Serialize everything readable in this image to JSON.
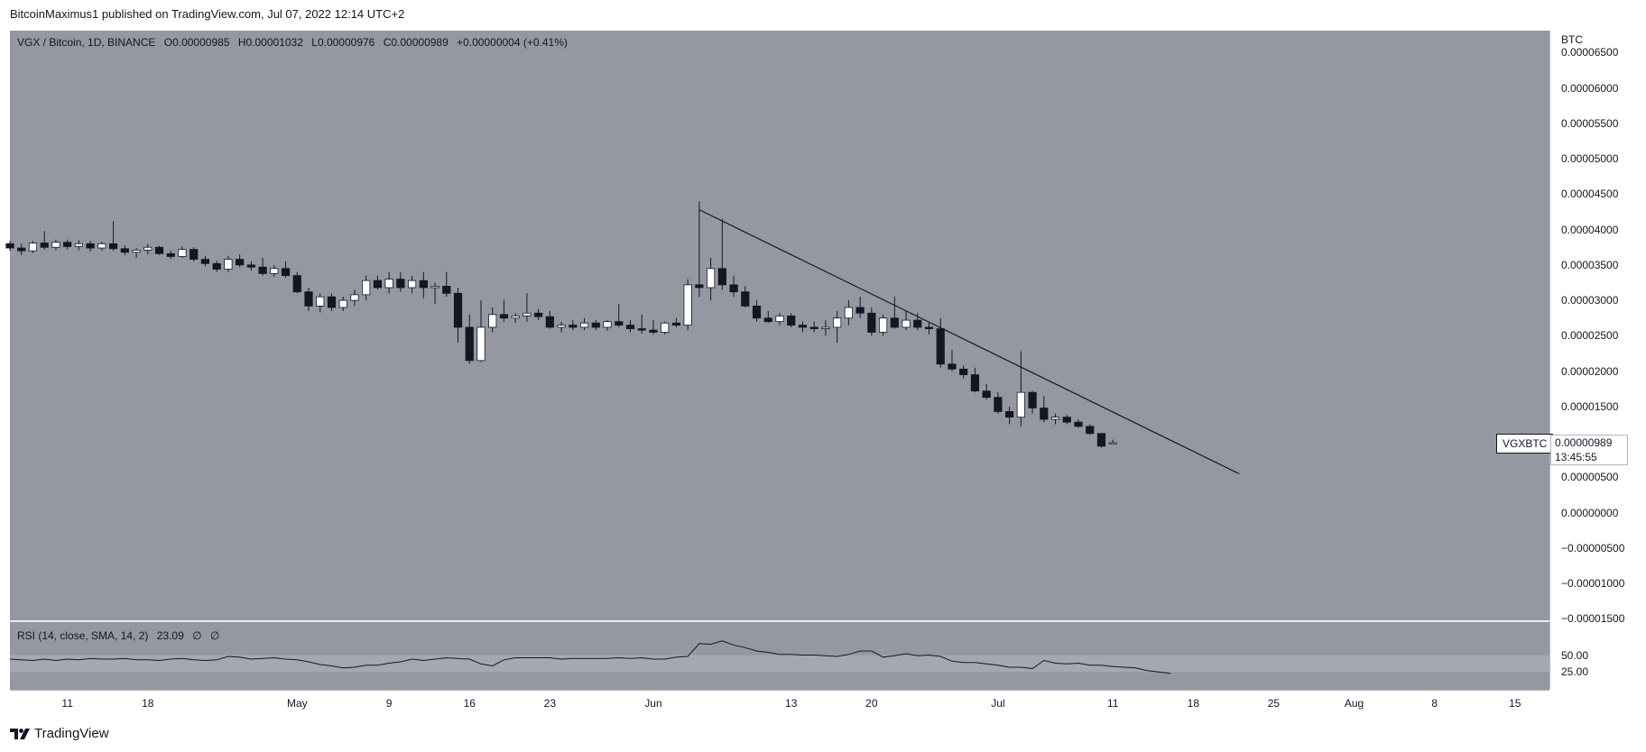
{
  "header": {
    "published_line": "BitcoinMaximus1 published on TradingView.com, Jul 07, 2022 12:14 UTC+2"
  },
  "legend": {
    "symbol": "VGX / Bitcoin, 1D, BINANCE",
    "o_label": "O",
    "o_value": "0.00000985",
    "h_label": "H",
    "h_value": "0.00001032",
    "l_label": "L",
    "l_value": "0.00000976",
    "c_label": "C",
    "c_value": "0.00000989",
    "change": "+0.00000004 (+0.41%)"
  },
  "rsi_legend": {
    "label": "RSI (14, close, SMA, 14, 2)",
    "value": "23.09",
    "extra1": "∅",
    "extra2": "∅"
  },
  "price_scale": {
    "currency": "BTC",
    "ticks": [
      "0.00006500",
      "0.00006000",
      "0.00005500",
      "0.00005000",
      "0.00004500",
      "0.00004000",
      "0.00003500",
      "0.00003000",
      "0.00002500",
      "0.00002000",
      "0.00001500",
      "0.00001000",
      "0.00000500",
      "0.00000000",
      "−0.00000500",
      "−0.00001000",
      "−0.00001500"
    ]
  },
  "rsi_scale": {
    "ticks": [
      "50.00",
      "25.00"
    ]
  },
  "last_price": {
    "symbol": "VGXBTC",
    "price": "0.00000989",
    "countdown": "13:45:55"
  },
  "time_axis": {
    "labels": [
      "11",
      "18",
      "May",
      "9",
      "16",
      "23",
      "Jun",
      "13",
      "20",
      "Jul",
      "11",
      "18",
      "25",
      "Aug",
      "8",
      "15"
    ]
  },
  "footer": {
    "brand": "TradingView"
  },
  "colors": {
    "pane_bg": "#9598a1",
    "up_body": "#ffffff",
    "down_body": "#131722",
    "wick": "#131722",
    "trendline": "#131722",
    "rsi_line": "#131722",
    "rsi_band": "#a5a8b0"
  },
  "chart_data": {
    "type": "candlestick",
    "title": "VGX / Bitcoin, 1D, BINANCE",
    "ylabel": "BTC",
    "ylim": [
      -1.52e-05,
      6.81e-05
    ],
    "x_start": "2022-04-06",
    "x_end": "2022-08-18",
    "candles": [
      [
        "2022-04-06",
        3.8e-05,
        3.84e-05,
        3.7e-05,
        3.74e-05
      ],
      [
        "2022-04-07",
        3.74e-05,
        3.8e-05,
        3.64e-05,
        3.7e-05
      ],
      [
        "2022-04-08",
        3.7e-05,
        3.84e-05,
        3.67e-05,
        3.81e-05
      ],
      [
        "2022-04-09",
        3.81e-05,
        3.98e-05,
        3.72e-05,
        3.75e-05
      ],
      [
        "2022-04-10",
        3.75e-05,
        3.86e-05,
        3.71e-05,
        3.82e-05
      ],
      [
        "2022-04-11",
        3.82e-05,
        3.86e-05,
        3.72e-05,
        3.76e-05
      ],
      [
        "2022-04-12",
        3.76e-05,
        3.85e-05,
        3.71e-05,
        3.8e-05
      ],
      [
        "2022-04-13",
        3.8e-05,
        3.84e-05,
        3.69e-05,
        3.74e-05
      ],
      [
        "2022-04-14",
        3.74e-05,
        3.83e-05,
        3.7e-05,
        3.8e-05
      ],
      [
        "2022-04-15",
        3.8e-05,
        4.12e-05,
        3.7e-05,
        3.73e-05
      ],
      [
        "2022-04-16",
        3.73e-05,
        3.78e-05,
        3.64e-05,
        3.68e-05
      ],
      [
        "2022-04-17",
        3.68e-05,
        3.74e-05,
        3.6e-05,
        3.71e-05
      ],
      [
        "2022-04-18",
        3.71e-05,
        3.8e-05,
        3.65e-05,
        3.75e-05
      ],
      [
        "2022-04-19",
        3.75e-05,
        3.77e-05,
        3.64e-05,
        3.66e-05
      ],
      [
        "2022-04-20",
        3.66e-05,
        3.7e-05,
        3.59e-05,
        3.62e-05
      ],
      [
        "2022-04-21",
        3.62e-05,
        3.76e-05,
        3.6e-05,
        3.72e-05
      ],
      [
        "2022-04-22",
        3.72e-05,
        3.75e-05,
        3.55e-05,
        3.58e-05
      ],
      [
        "2022-04-23",
        3.58e-05,
        3.63e-05,
        3.48e-05,
        3.52e-05
      ],
      [
        "2022-04-24",
        3.52e-05,
        3.56e-05,
        3.4e-05,
        3.44e-05
      ],
      [
        "2022-04-25",
        3.44e-05,
        3.63e-05,
        3.4e-05,
        3.58e-05
      ],
      [
        "2022-04-26",
        3.58e-05,
        3.65e-05,
        3.47e-05,
        3.5e-05
      ],
      [
        "2022-04-27",
        3.5e-05,
        3.55e-05,
        3.42e-05,
        3.47e-05
      ],
      [
        "2022-04-28",
        3.47e-05,
        3.6e-05,
        3.35e-05,
        3.38e-05
      ],
      [
        "2022-04-29",
        3.38e-05,
        3.5e-05,
        3.33e-05,
        3.45e-05
      ],
      [
        "2022-04-30",
        3.45e-05,
        3.55e-05,
        3.32e-05,
        3.35e-05
      ],
      [
        "2022-05-01",
        3.35e-05,
        3.4e-05,
        3.1e-05,
        3.12e-05
      ],
      [
        "2022-05-02",
        3.12e-05,
        3.18e-05,
        2.85e-05,
        2.92e-05
      ],
      [
        "2022-05-03",
        2.92e-05,
        3.1e-05,
        2.83e-05,
        3.05e-05
      ],
      [
        "2022-05-04",
        3.05e-05,
        3.1e-05,
        2.85e-05,
        2.9e-05
      ],
      [
        "2022-05-05",
        2.9e-05,
        3.05e-05,
        2.85e-05,
        3e-05
      ],
      [
        "2022-05-06",
        3e-05,
        3.15e-05,
        2.92e-05,
        3.08e-05
      ],
      [
        "2022-05-07",
        3.08e-05,
        3.35e-05,
        3e-05,
        3.28e-05
      ],
      [
        "2022-05-08",
        3.28e-05,
        3.35e-05,
        3.15e-05,
        3.18e-05
      ],
      [
        "2022-05-09",
        3.18e-05,
        3.4e-05,
        3.1e-05,
        3.3e-05
      ],
      [
        "2022-05-10",
        3.3e-05,
        3.4e-05,
        3.12e-05,
        3.18e-05
      ],
      [
        "2022-05-11",
        3.18e-05,
        3.35e-05,
        3.1e-05,
        3.28e-05
      ],
      [
        "2022-05-12",
        3.28e-05,
        3.4e-05,
        3.03e-05,
        3.18e-05
      ],
      [
        "2022-05-13",
        3.18e-05,
        3.25e-05,
        2.95e-05,
        3.2e-05
      ],
      [
        "2022-05-14",
        3.2e-05,
        3.4e-05,
        3.05e-05,
        3.1e-05
      ],
      [
        "2022-05-15",
        3.1e-05,
        3.18e-05,
        2.4e-05,
        2.62e-05
      ],
      [
        "2022-05-16",
        2.62e-05,
        2.8e-05,
        2.1e-05,
        2.15e-05
      ],
      [
        "2022-05-17",
        2.15e-05,
        3e-05,
        2.13e-05,
        2.62e-05
      ],
      [
        "2022-05-18",
        2.62e-05,
        2.9e-05,
        2.55e-05,
        2.8e-05
      ],
      [
        "2022-05-19",
        2.8e-05,
        3e-05,
        2.7e-05,
        2.75e-05
      ],
      [
        "2022-05-20",
        2.75e-05,
        2.82e-05,
        2.68e-05,
        2.78e-05
      ],
      [
        "2022-05-21",
        2.78e-05,
        3.1e-05,
        2.7e-05,
        2.82e-05
      ],
      [
        "2022-05-22",
        2.82e-05,
        2.88e-05,
        2.72e-05,
        2.77e-05
      ],
      [
        "2022-05-23",
        2.77e-05,
        2.85e-05,
        2.6e-05,
        2.62e-05
      ],
      [
        "2022-05-24",
        2.62e-05,
        2.7e-05,
        2.55e-05,
        2.65e-05
      ],
      [
        "2022-05-25",
        2.65e-05,
        2.72e-05,
        2.58e-05,
        2.62e-05
      ],
      [
        "2022-05-26",
        2.62e-05,
        2.75e-05,
        2.58e-05,
        2.68e-05
      ],
      [
        "2022-05-27",
        2.68e-05,
        2.72e-05,
        2.58e-05,
        2.62e-05
      ],
      [
        "2022-05-28",
        2.62e-05,
        2.72e-05,
        2.57e-05,
        2.7e-05
      ],
      [
        "2022-05-29",
        2.7e-05,
        2.95e-05,
        2.62e-05,
        2.65e-05
      ],
      [
        "2022-05-30",
        2.65e-05,
        2.72e-05,
        2.55e-05,
        2.6e-05
      ],
      [
        "2022-05-31",
        2.6e-05,
        2.8e-05,
        2.53e-05,
        2.58e-05
      ],
      [
        "2022-06-01",
        2.58e-05,
        2.72e-05,
        2.52e-05,
        2.55e-05
      ],
      [
        "2022-06-02",
        2.55e-05,
        2.7e-05,
        2.52e-05,
        2.68e-05
      ],
      [
        "2022-06-03",
        2.68e-05,
        2.75e-05,
        2.62e-05,
        2.65e-05
      ],
      [
        "2022-06-04",
        2.65e-05,
        3.3e-05,
        2.58e-05,
        3.22e-05
      ],
      [
        "2022-06-05",
        3.22e-05,
        4.4e-05,
        3.05e-05,
        3.18e-05
      ],
      [
        "2022-06-06",
        3.18e-05,
        3.6e-05,
        3e-05,
        3.45e-05
      ],
      [
        "2022-06-07",
        3.45e-05,
        4.15e-05,
        3.15e-05,
        3.22e-05
      ],
      [
        "2022-06-08",
        3.22e-05,
        3.35e-05,
        3.05e-05,
        3.12e-05
      ],
      [
        "2022-06-09",
        3.12e-05,
        3.2e-05,
        2.9e-05,
        2.92e-05
      ],
      [
        "2022-06-10",
        2.92e-05,
        3e-05,
        2.7e-05,
        2.75e-05
      ],
      [
        "2022-06-11",
        2.75e-05,
        2.85e-05,
        2.68e-05,
        2.7e-05
      ],
      [
        "2022-06-12",
        2.7e-05,
        2.82e-05,
        2.65e-05,
        2.78e-05
      ],
      [
        "2022-06-13",
        2.78e-05,
        2.82e-05,
        2.62e-05,
        2.65e-05
      ],
      [
        "2022-06-14",
        2.65e-05,
        2.7e-05,
        2.55e-05,
        2.62e-05
      ],
      [
        "2022-06-15",
        2.62e-05,
        2.7e-05,
        2.55e-05,
        2.6e-05
      ],
      [
        "2022-06-16",
        2.6e-05,
        2.72e-05,
        2.5e-05,
        2.62e-05
      ],
      [
        "2022-06-17",
        2.62e-05,
        2.85e-05,
        2.4e-05,
        2.75e-05
      ],
      [
        "2022-06-18",
        2.75e-05,
        3e-05,
        2.65e-05,
        2.9e-05
      ],
      [
        "2022-06-19",
        2.9e-05,
        3.05e-05,
        2.75e-05,
        2.82e-05
      ],
      [
        "2022-06-20",
        2.82e-05,
        2.9e-05,
        2.5e-05,
        2.55e-05
      ],
      [
        "2022-06-21",
        2.55e-05,
        2.8e-05,
        2.5e-05,
        2.75e-05
      ],
      [
        "2022-06-22",
        2.75e-05,
        3.05e-05,
        2.6e-05,
        2.62e-05
      ],
      [
        "2022-06-23",
        2.62e-05,
        2.85e-05,
        2.58e-05,
        2.72e-05
      ],
      [
        "2022-06-24",
        2.72e-05,
        2.82e-05,
        2.58e-05,
        2.62e-05
      ],
      [
        "2022-06-25",
        2.62e-05,
        2.7e-05,
        2.52e-05,
        2.6e-05
      ],
      [
        "2022-06-26",
        2.6e-05,
        2.75e-05,
        2.05e-05,
        2.1e-05
      ],
      [
        "2022-06-27",
        2.1e-05,
        2.3e-05,
        2e-05,
        2.03e-05
      ],
      [
        "2022-06-28",
        2.03e-05,
        2.08e-05,
        1.9e-05,
        1.95e-05
      ],
      [
        "2022-06-29",
        1.95e-05,
        2.05e-05,
        1.7e-05,
        1.72e-05
      ],
      [
        "2022-06-30",
        1.72e-05,
        1.82e-05,
        1.6e-05,
        1.63e-05
      ],
      [
        "2022-07-01",
        1.63e-05,
        1.7e-05,
        1.4e-05,
        1.43e-05
      ],
      [
        "2022-07-02",
        1.43e-05,
        1.5e-05,
        1.25e-05,
        1.35e-05
      ],
      [
        "2022-07-03",
        1.35e-05,
        2.28e-05,
        1.22e-05,
        1.7e-05
      ],
      [
        "2022-07-04",
        1.7e-05,
        1.72e-05,
        1.4e-05,
        1.48e-05
      ],
      [
        "2022-07-05",
        1.48e-05,
        1.65e-05,
        1.28e-05,
        1.32e-05
      ],
      [
        "2022-07-06",
        1.32e-05,
        1.4e-05,
        1.25e-05,
        1.35e-05
      ],
      [
        "2022-07-07",
        1.35e-05,
        1.38e-05,
        1.25e-05,
        1.28e-05
      ],
      [
        "2022-07-08",
        1.28e-05,
        1.32e-05,
        1.2e-05,
        1.22e-05
      ],
      [
        "2022-07-09",
        1.22e-05,
        1.25e-05,
        1.1e-05,
        1.12e-05
      ],
      [
        "2022-07-10",
        1.12e-05,
        1.12e-05,
        9.2e-06,
        9.4e-06
      ],
      [
        "2022-07-11",
        9.85e-06,
        1.032e-05,
        9.76e-06,
        9.89e-06
      ]
    ],
    "trendline": [
      [
        "2022-06-05",
        4.28e-05
      ],
      [
        "2022-07-22",
        5.5e-06
      ]
    ],
    "rsi": {
      "label": "RSI (14, close, SMA, 14, 2)",
      "range": [
        0,
        100
      ],
      "levels": [
        50,
        25
      ],
      "values": [
        44,
        43,
        42,
        44,
        42,
        44,
        43,
        45,
        44,
        44,
        45,
        43,
        43,
        42,
        44,
        45,
        43,
        42,
        43,
        48,
        47,
        44,
        45,
        46,
        44,
        43,
        40,
        36,
        34,
        31,
        32,
        35,
        35,
        38,
        40,
        44,
        42,
        44,
        46,
        45,
        44,
        37,
        34,
        43,
        46,
        46,
        46,
        46,
        44,
        45,
        45,
        45,
        45,
        46,
        45,
        46,
        44,
        44,
        47,
        48,
        67,
        66,
        71,
        65,
        61,
        56,
        54,
        51,
        51,
        50,
        50,
        49,
        48,
        51,
        56,
        56,
        47,
        49,
        52,
        49,
        50,
        48,
        41,
        39,
        39,
        37,
        35,
        32,
        32,
        30,
        42,
        38,
        37,
        38,
        35,
        35,
        33,
        32,
        31,
        27,
        25,
        23
      ]
    }
  }
}
